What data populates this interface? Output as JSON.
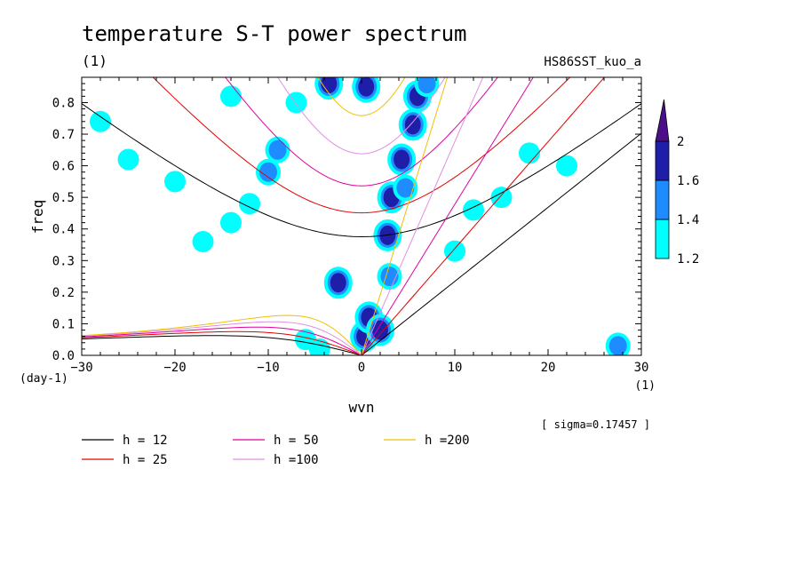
{
  "chart_data": {
    "type": "heatmap",
    "title": "temperature S-T power spectrum",
    "subtitle_left": "(1)",
    "subtitle_right": "HS86SST_kuo_a",
    "xlabel": "wvn",
    "x_unit": "(1)",
    "ylabel": "freq",
    "y_unit": "(day-1)",
    "xlim": [
      -30,
      30
    ],
    "ylim": [
      0,
      0.88
    ],
    "x_ticks": [
      -30,
      -20,
      -10,
      0,
      10,
      20,
      30
    ],
    "y_ticks": [
      0.0,
      0.1,
      0.2,
      0.3,
      0.4,
      0.5,
      0.6,
      0.7,
      0.8
    ],
    "sigma_label": "[ sigma=0.17457 ]",
    "colorbar": {
      "levels": [
        1.2,
        1.4,
        1.6,
        2
      ],
      "labels": [
        "1.2",
        "1.4",
        "1.6",
        "2"
      ],
      "colors": [
        "#00ffff",
        "#1e8cff",
        "#1e1ea8",
        "#4b0f8c"
      ]
    },
    "curves": [
      {
        "label": "h = 12",
        "h": 12,
        "color": "#000000"
      },
      {
        "label": "h = 25",
        "h": 25,
        "color": "#e00000"
      },
      {
        "label": "h = 50",
        "h": 50,
        "color": "#e000a0"
      },
      {
        "label": "h =100",
        "h": 100,
        "color": "#e090e0"
      },
      {
        "label": "h =200",
        "h": 200,
        "color": "#f0c000"
      }
    ],
    "blobs": [
      {
        "x": 0.3,
        "y": 0.06,
        "level": 3
      },
      {
        "x": 0.8,
        "y": 0.12,
        "level": 3
      },
      {
        "x": 2.0,
        "y": 0.08,
        "level": 3
      },
      {
        "x": 3.0,
        "y": 0.25,
        "level": 2
      },
      {
        "x": 2.8,
        "y": 0.38,
        "level": 3
      },
      {
        "x": 3.2,
        "y": 0.5,
        "level": 3
      },
      {
        "x": 4.3,
        "y": 0.62,
        "level": 3
      },
      {
        "x": 4.7,
        "y": 0.53,
        "level": 2
      },
      {
        "x": 5.5,
        "y": 0.73,
        "level": 3
      },
      {
        "x": 6.0,
        "y": 0.82,
        "level": 3
      },
      {
        "x": 7.0,
        "y": 0.86,
        "level": 2
      },
      {
        "x": 0.5,
        "y": 0.85,
        "level": 3
      },
      {
        "x": -3.5,
        "y": 0.86,
        "level": 3
      },
      {
        "x": -2.5,
        "y": 0.23,
        "level": 3
      },
      {
        "x": -9.0,
        "y": 0.65,
        "level": 2
      },
      {
        "x": -10.0,
        "y": 0.58,
        "level": 2
      },
      {
        "x": -12.0,
        "y": 0.48,
        "level": 1
      },
      {
        "x": -14.0,
        "y": 0.42,
        "level": 1
      },
      {
        "x": -17.0,
        "y": 0.36,
        "level": 1
      },
      {
        "x": -20.0,
        "y": 0.55,
        "level": 1
      },
      {
        "x": -25.0,
        "y": 0.62,
        "level": 1
      },
      {
        "x": -28.0,
        "y": 0.74,
        "level": 1
      },
      {
        "x": -6.0,
        "y": 0.05,
        "level": 1
      },
      {
        "x": -4.5,
        "y": 0.02,
        "level": 1
      },
      {
        "x": 10.0,
        "y": 0.33,
        "level": 1
      },
      {
        "x": 15.0,
        "y": 0.5,
        "level": 1
      },
      {
        "x": 18.0,
        "y": 0.64,
        "level": 1
      },
      {
        "x": 22.0,
        "y": 0.6,
        "level": 1
      },
      {
        "x": 27.5,
        "y": 0.03,
        "level": 2
      },
      {
        "x": -14.0,
        "y": 0.82,
        "level": 1
      },
      {
        "x": -7.0,
        "y": 0.8,
        "level": 1
      },
      {
        "x": 12.0,
        "y": 0.46,
        "level": 1
      }
    ]
  },
  "legend": [
    {
      "label": "h = 12",
      "color": "#000000"
    },
    {
      "label": "h = 25",
      "color": "#e00000"
    },
    {
      "label": "h = 50",
      "color": "#e000a0"
    },
    {
      "label": "h =100",
      "color": "#e090e0"
    },
    {
      "label": "h =200",
      "color": "#f0c000"
    }
  ]
}
